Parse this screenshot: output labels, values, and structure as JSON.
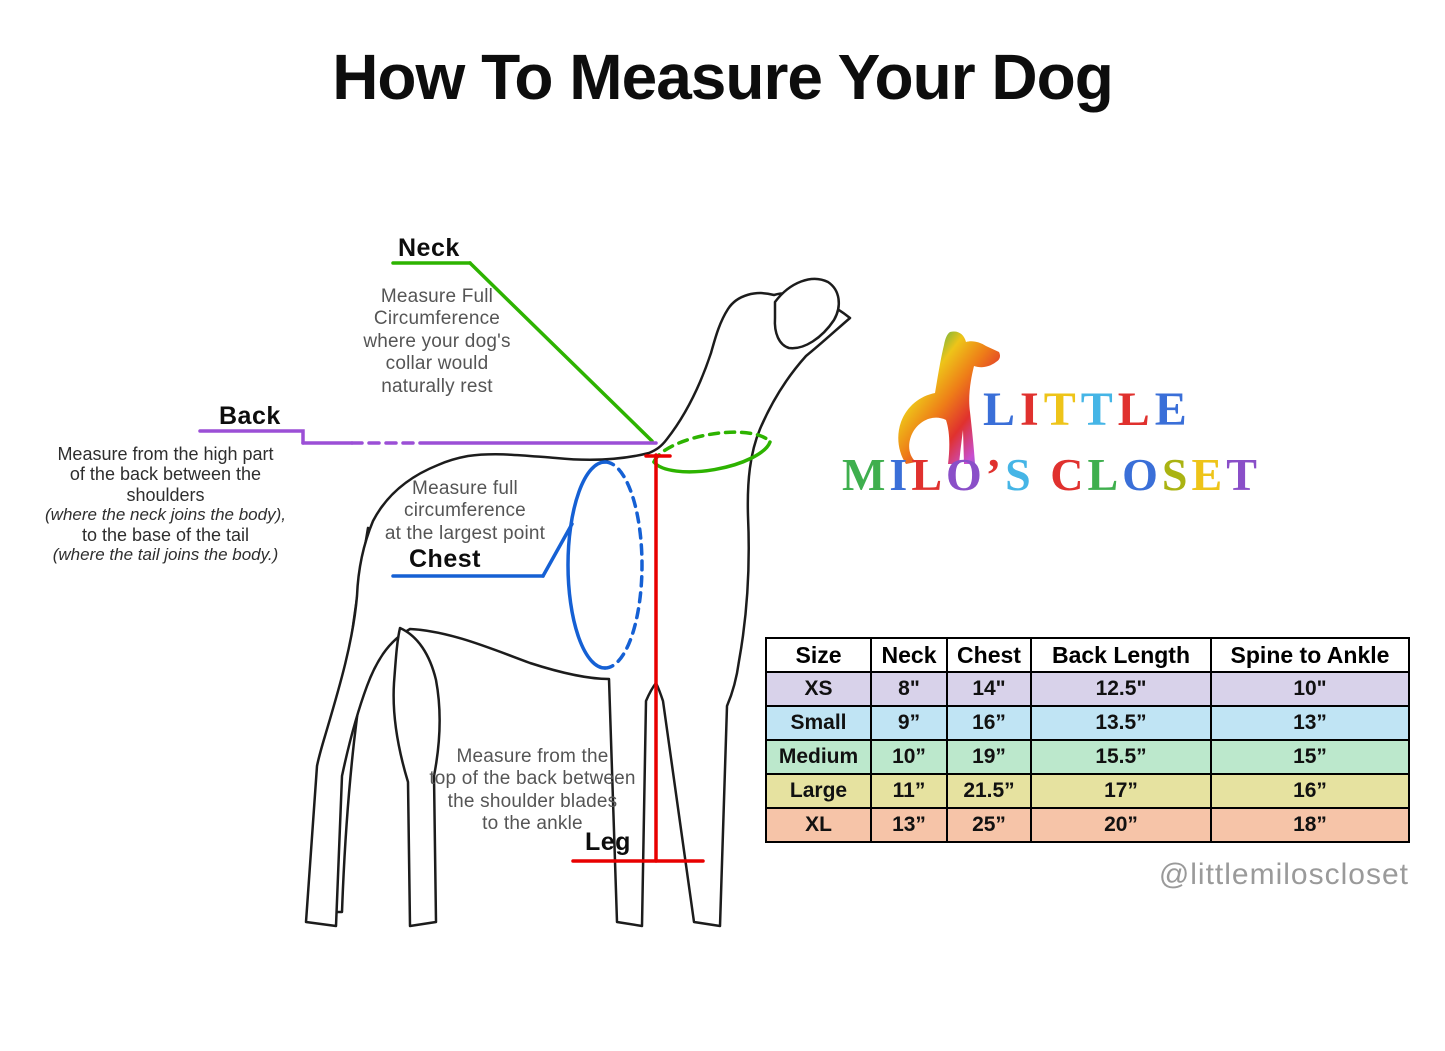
{
  "title": "How To Measure Your Dog",
  "labels": {
    "neck": "Neck",
    "back": "Back",
    "chest": "Chest",
    "leg": "Leg"
  },
  "instructions": {
    "neck": "Measure Full\nCircumference\nwhere your dog's\ncollar would\nnaturally rest",
    "back_main": "Measure from the high part\nof the back between the\nshoulders",
    "back_italic1": "(where the neck joins the body),",
    "back_mid": "to the base of the tail",
    "back_italic2": "(where the tail joins the body.)",
    "chest": "Measure full\ncircumference\nat the largest point",
    "leg": "Measure from the\ntop of the back between\nthe shoulder blades\nto the ankle"
  },
  "colors": {
    "neck_line": "#2db300",
    "back_line": "#9b4fd6",
    "chest_line": "#1560d4",
    "leg_line": "#e80000",
    "outline": "#1c1c1c"
  },
  "logo": {
    "gradient": [
      "#2e9fd0",
      "#3faf4e",
      "#eec419",
      "#ee7d18",
      "#e0312e",
      "#c84fd0",
      "#3a6fd8"
    ],
    "line1": [
      {
        "ch": "L",
        "color": "#3a6fd8"
      },
      {
        "ch": "I",
        "color": "#e0312e"
      },
      {
        "ch": "T",
        "color": "#eec419"
      },
      {
        "ch": "T",
        "color": "#45b5e6"
      },
      {
        "ch": "L",
        "color": "#e0312e"
      },
      {
        "ch": "E",
        "color": "#3a6fd8"
      }
    ],
    "line2": [
      {
        "ch": "M",
        "color": "#3faf4e"
      },
      {
        "ch": "I",
        "color": "#3a6fd8"
      },
      {
        "ch": "L",
        "color": "#e0312e"
      },
      {
        "ch": "O",
        "color": "#8a4fc8"
      },
      {
        "ch": "’",
        "color": "#e0312e"
      },
      {
        "ch": "S",
        "color": "#45b5e6"
      },
      {
        "ch": " ",
        "color": "#000000"
      },
      {
        "ch": "C",
        "color": "#e0312e"
      },
      {
        "ch": "L",
        "color": "#3faf4e"
      },
      {
        "ch": "O",
        "color": "#3a6fd8"
      },
      {
        "ch": "S",
        "color": "#aab312"
      },
      {
        "ch": "E",
        "color": "#eec419"
      },
      {
        "ch": "T",
        "color": "#8a4fc8"
      }
    ]
  },
  "table": {
    "headers": [
      "Size",
      "Neck",
      "Chest",
      "Back Length",
      "Spine to Ankle"
    ],
    "rows": [
      {
        "size": "XS",
        "neck": "8\"",
        "chest": "14\"",
        "back_length": "12.5\"",
        "spine_to_ankle": "10\"",
        "color": "#d8d2ea"
      },
      {
        "size": "Small",
        "neck": "9”",
        "chest": "16”",
        "back_length": "13.5”",
        "spine_to_ankle": "13”",
        "color": "#c0e4f4"
      },
      {
        "size": "Medium",
        "neck": "10”",
        "chest": "19”",
        "back_length": "15.5”",
        "spine_to_ankle": "15”",
        "color": "#bce8cc"
      },
      {
        "size": "Large",
        "neck": "11”",
        "chest": "21.5”",
        "back_length": "17”",
        "spine_to_ankle": "16”",
        "color": "#e6e2a0"
      },
      {
        "size": "XL",
        "neck": "13”",
        "chest": "25”",
        "back_length": "20”",
        "spine_to_ankle": "18”",
        "color": "#f6c4a8"
      }
    ]
  },
  "handle": "@littlemiloscloset"
}
